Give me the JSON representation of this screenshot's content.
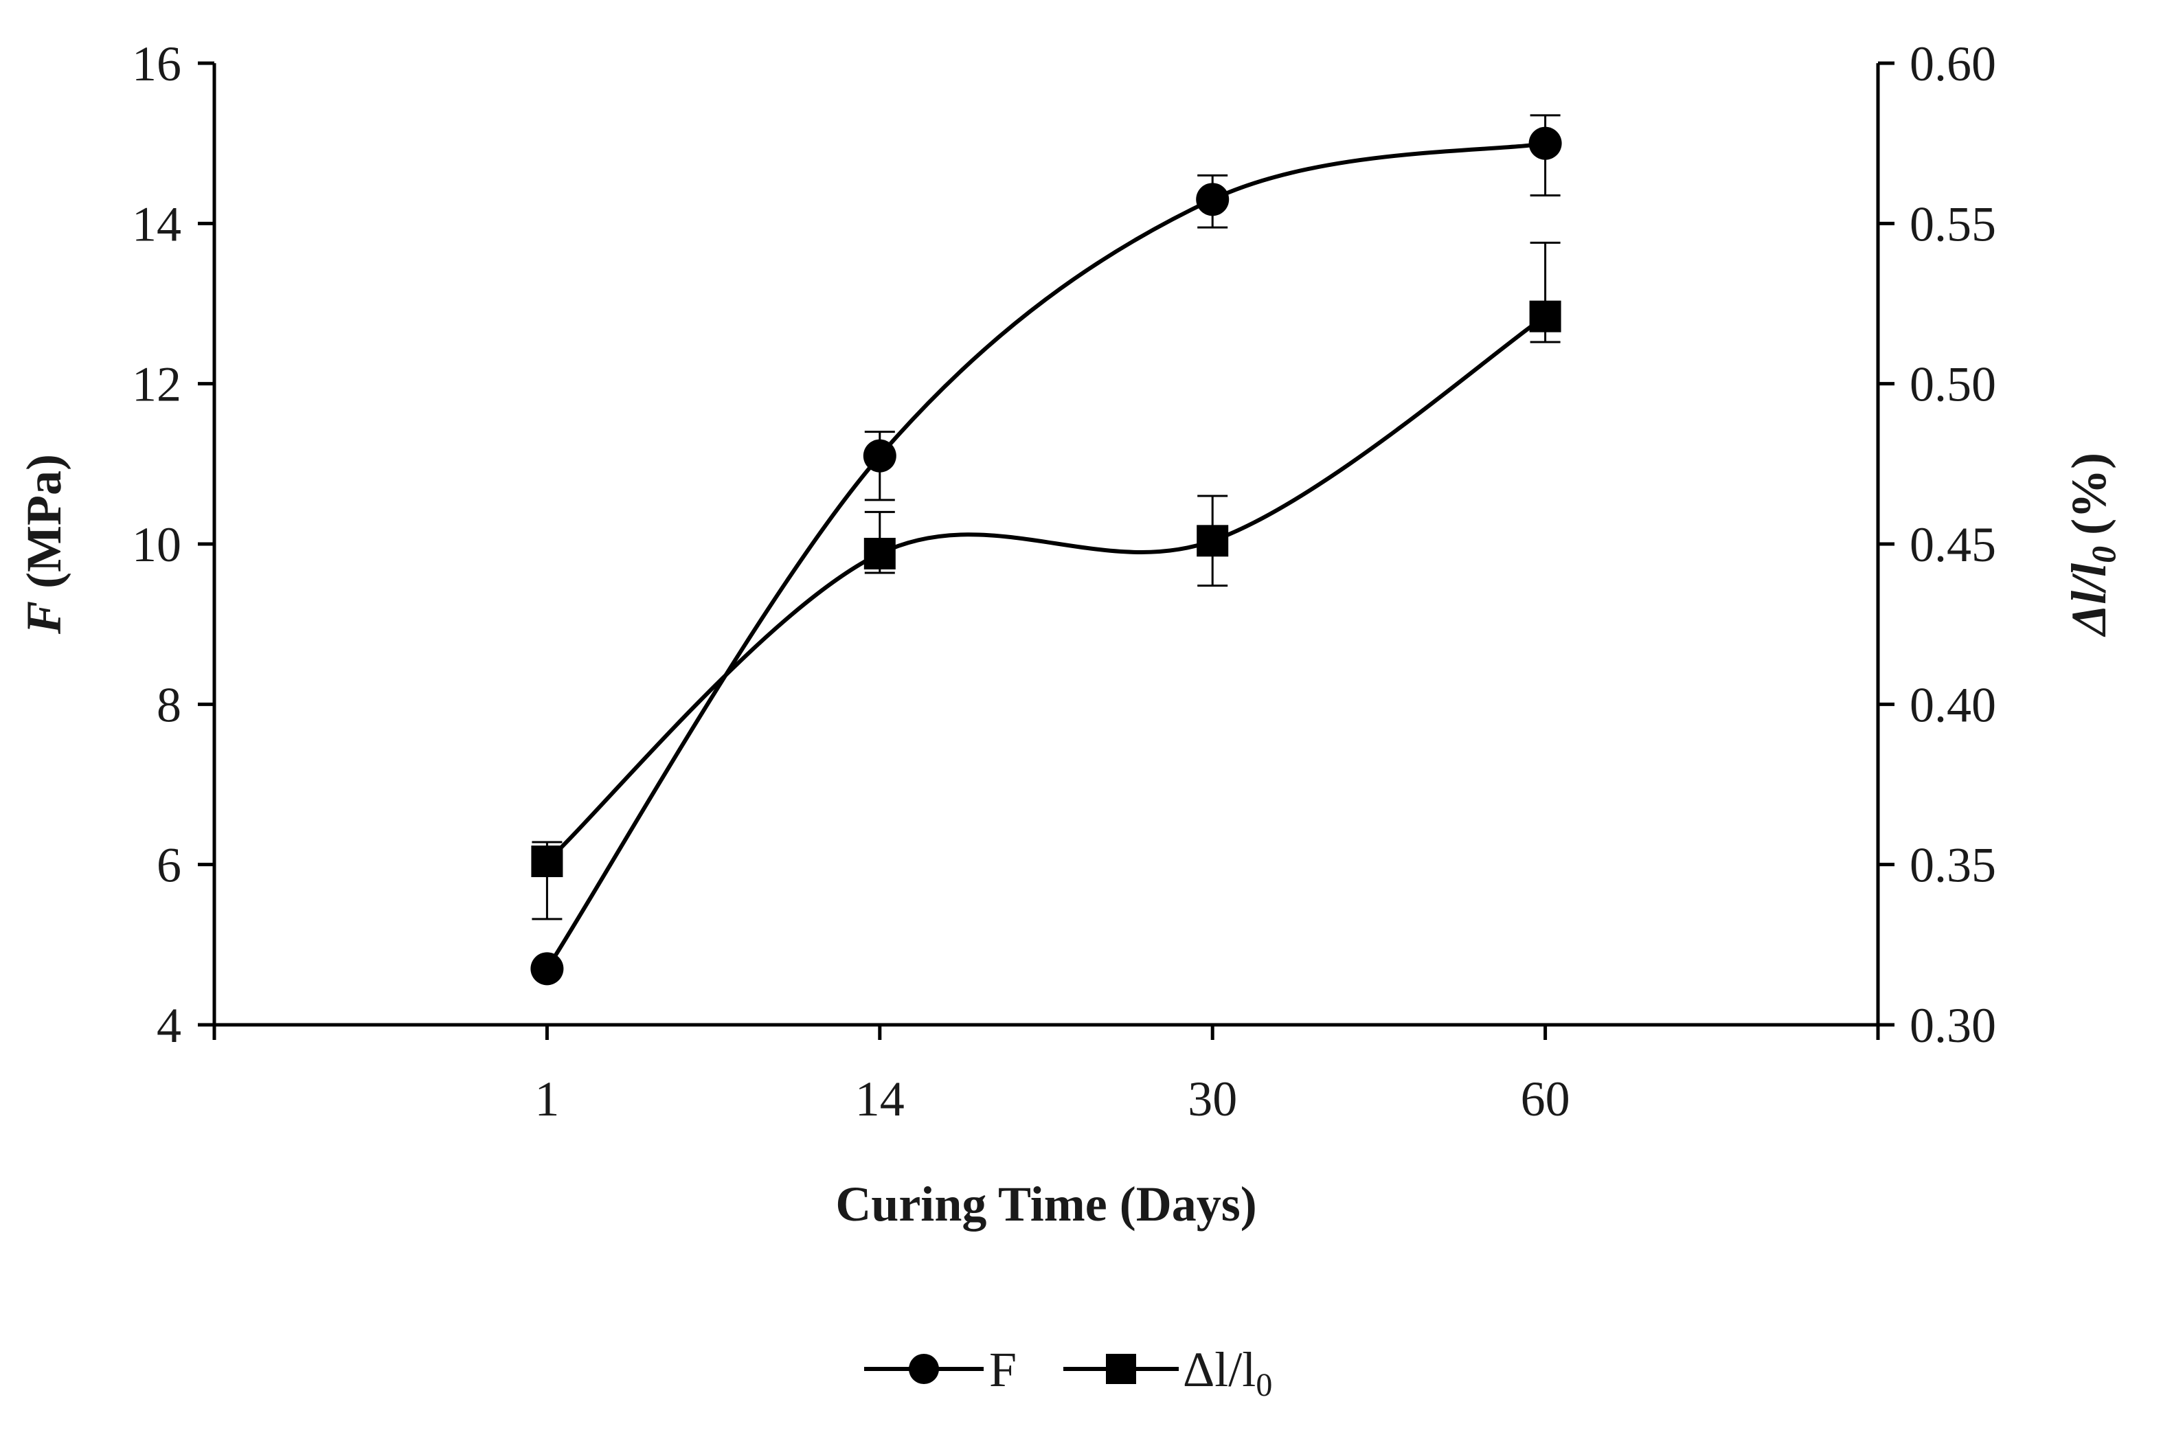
{
  "chart_data": {
    "type": "line",
    "smoothed": true,
    "categories": [
      "1",
      "14",
      "30",
      "60"
    ],
    "xlabel": "Curing Time (Days)",
    "ylabel": {
      "symbol": "F",
      "unit": "(MPa)"
    },
    "y2label": {
      "symbol": "Δl/l",
      "subscript": "0",
      "unit": "(%)"
    },
    "ylim": [
      4,
      16
    ],
    "y_ticks": [
      "4",
      "6",
      "8",
      "10",
      "12",
      "14",
      "16"
    ],
    "y2lim": [
      0.3,
      0.6
    ],
    "y2_ticks": [
      "0.30",
      "0.35",
      "0.40",
      "0.45",
      "0.50",
      "0.55",
      "0.60"
    ],
    "series": [
      {
        "name": "F",
        "axis": "left",
        "marker": "circle",
        "values": [
          4.7,
          11.1,
          14.3,
          15.0
        ],
        "err_plus": [
          0.0,
          0.3,
          0.3,
          0.35
        ],
        "err_minus": [
          0.0,
          0.55,
          0.35,
          0.65
        ]
      },
      {
        "name": "Δl/l",
        "name_subscript": "0",
        "axis": "right",
        "marker": "square",
        "values": [
          0.351,
          0.447,
          0.451,
          0.521
        ],
        "err_plus": [
          0.006,
          0.013,
          0.014,
          0.023
        ],
        "err_minus": [
          0.018,
          0.006,
          0.014,
          0.008
        ]
      }
    ],
    "legend": "bottom-center"
  }
}
